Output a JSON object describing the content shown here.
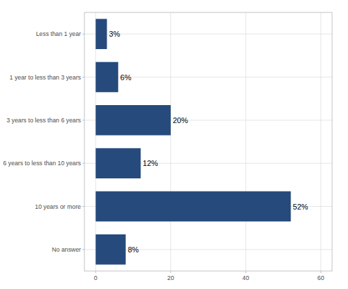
{
  "chart_data": {
    "type": "bar",
    "orientation": "horizontal",
    "categories": [
      "Less than 1 year",
      "1 year to less than 3 years",
      "3 years to less than 6 years",
      "6 years to less than 10 years",
      "10 years or more",
      "No answer"
    ],
    "values": [
      3,
      6,
      20,
      12,
      52,
      8
    ],
    "value_labels": [
      "3%",
      "6%",
      "20%",
      "12%",
      "52%",
      "8%"
    ],
    "color": "#264a7b",
    "xlim": [
      -3,
      63
    ],
    "xticks": [
      0,
      20,
      40,
      60
    ],
    "grid": true,
    "data_labels": true
  }
}
